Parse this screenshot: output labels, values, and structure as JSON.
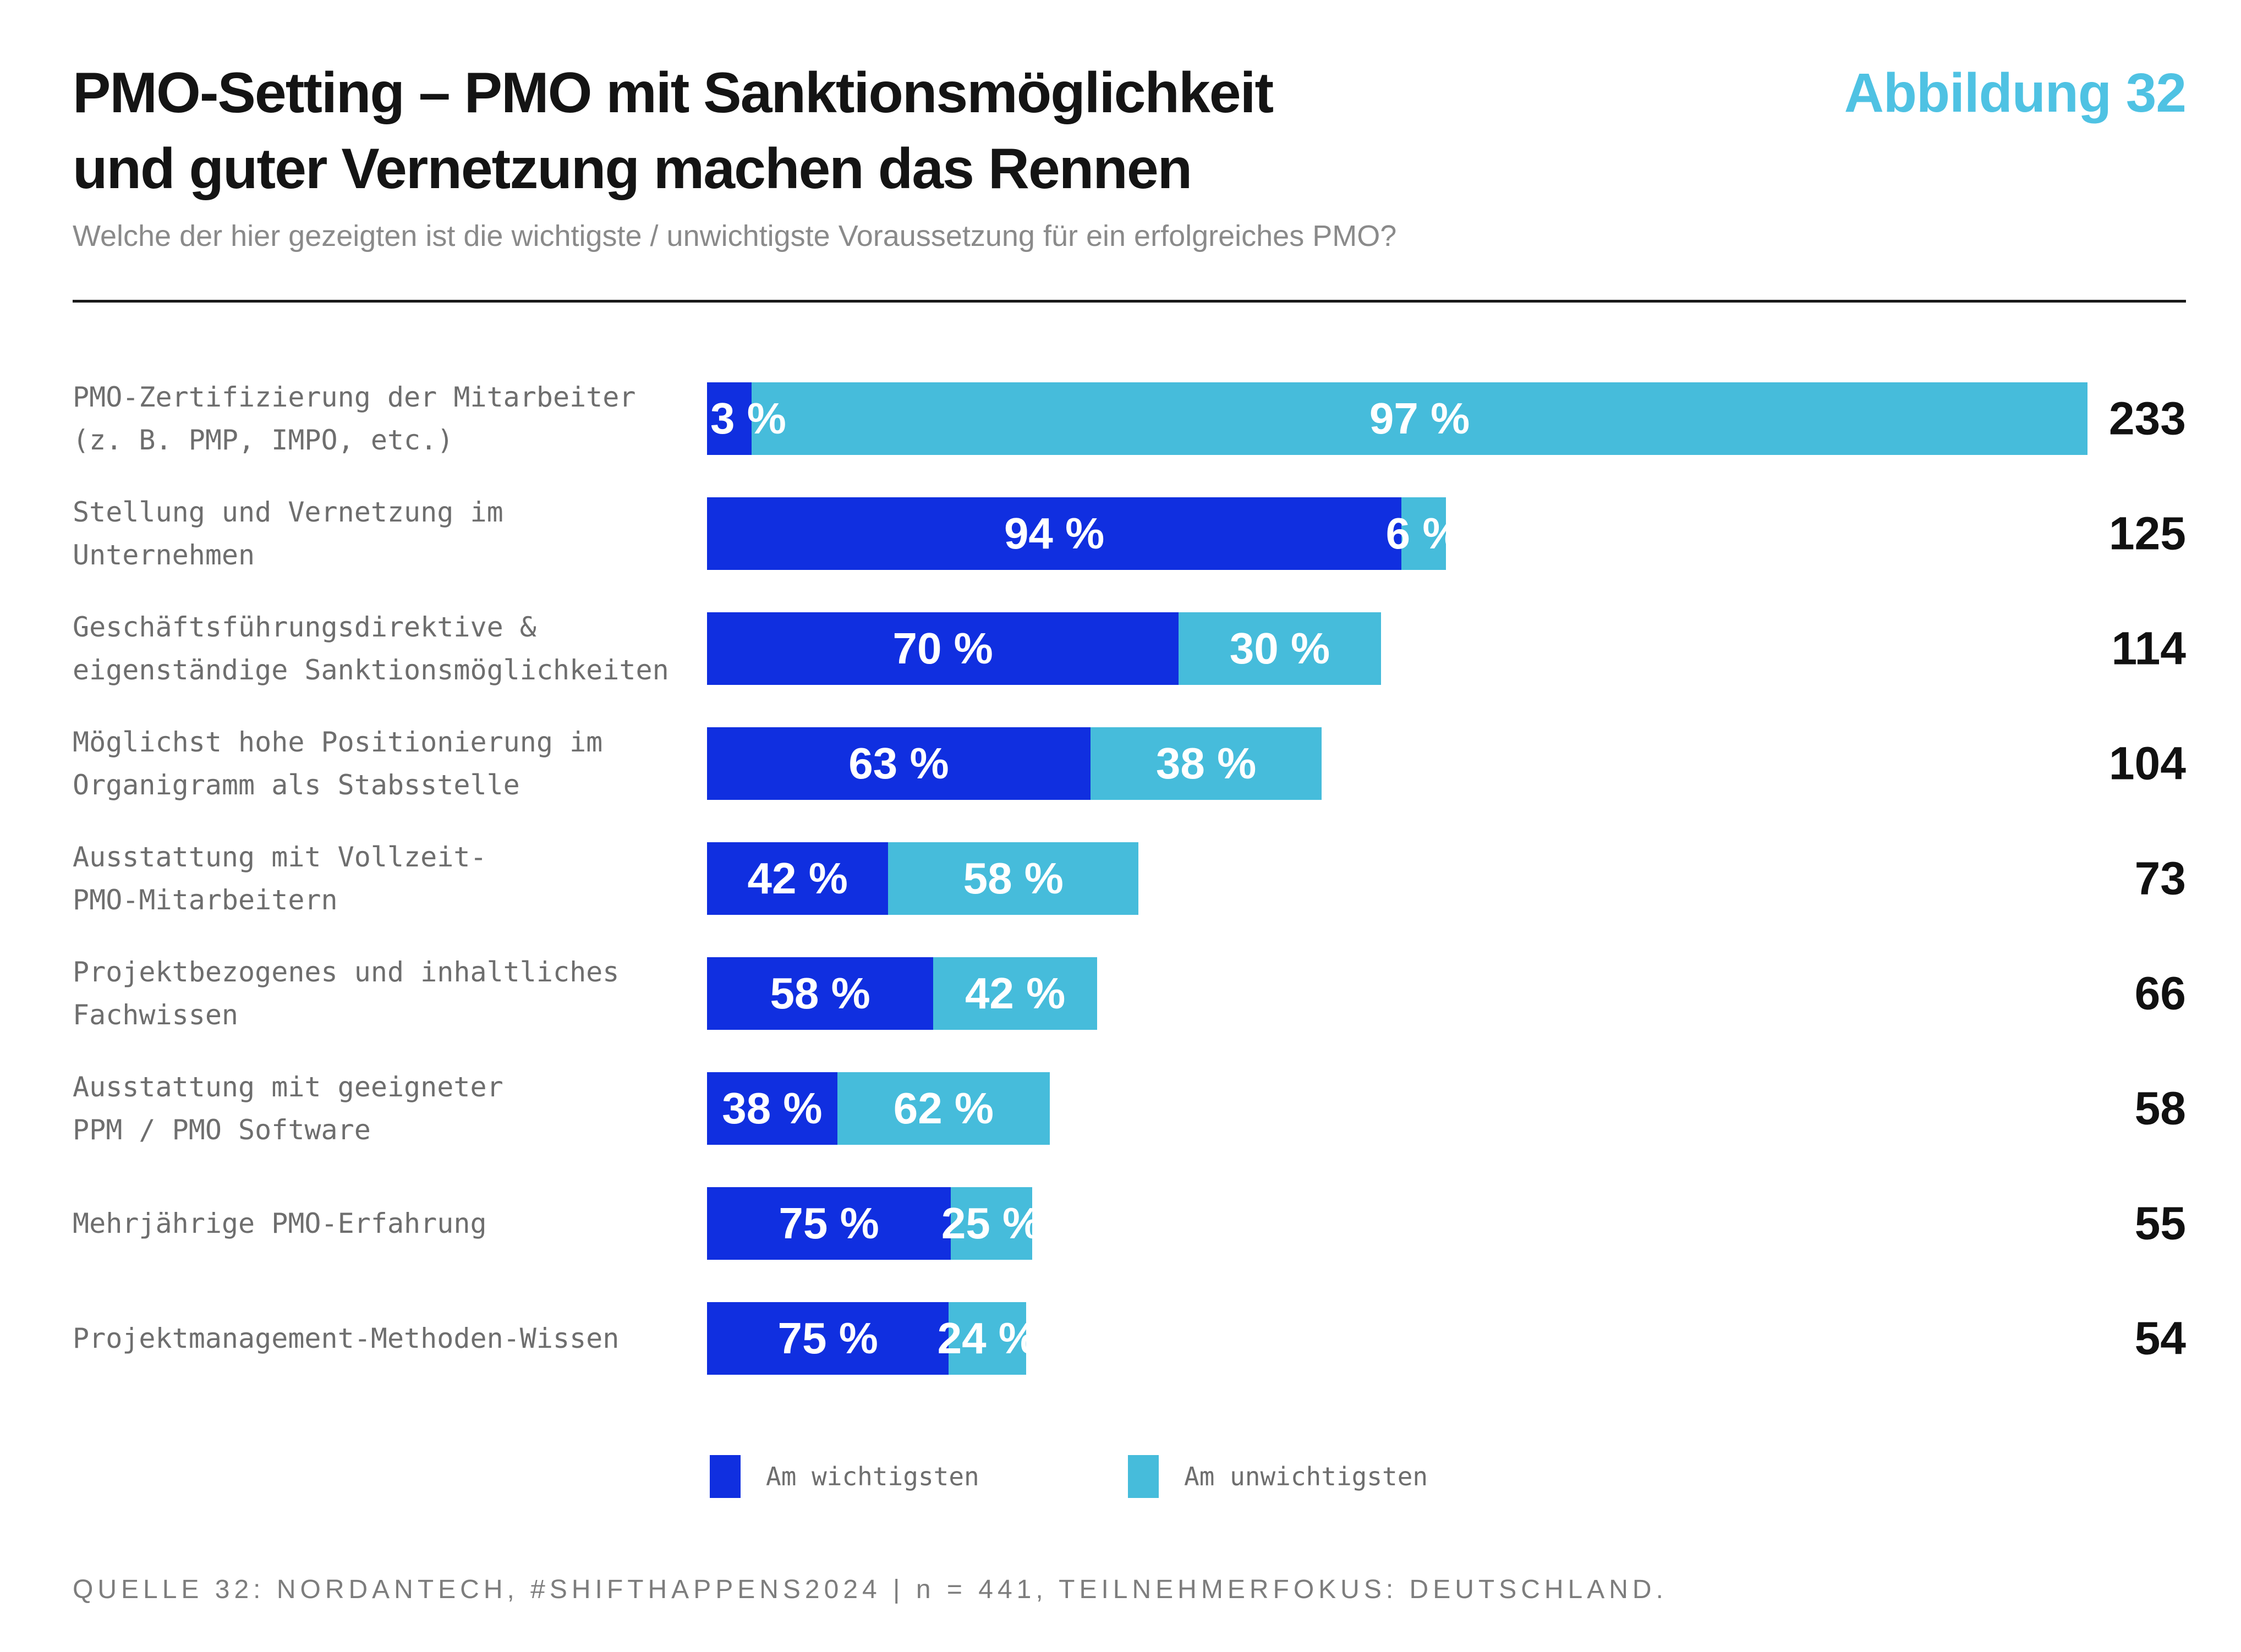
{
  "header": {
    "title_line1": "PMO-Setting – PMO mit Sanktionsmöglichkeit",
    "title_line2": "und guter Vernetzung machen das Rennen",
    "figure_label": "Abbildung 32",
    "subtitle": "Welche der hier gezeigten ist die wichtigste / unwichtigste Voraussetzung für ein erfolgreiches PMO?"
  },
  "colors": {
    "most_important": "#102FE0",
    "least_important": "#46BCDB",
    "figure_label_accent": "#4FC2E3",
    "title_text": "#141414",
    "category_label_gray": "#6e6e6e",
    "subtitle_gray": "#8a8a8a",
    "footer_gray": "#7d7d7d"
  },
  "chart_data": {
    "type": "bar",
    "orientation": "horizontal",
    "stacked": true,
    "bar_length_proportional_to": "totals",
    "legend_position": "bottom",
    "percent_suffix": " %",
    "categories": [
      [
        "PMO-Zertifizierung der Mitarbeiter",
        "(z. B. PMP, IMPO, etc.)"
      ],
      [
        "Stellung und Vernetzung im",
        "Unternehmen"
      ],
      [
        "Geschäftsführungsdirektive &",
        "eigenständige Sanktionsmöglichkeiten"
      ],
      [
        "Möglichst hohe Positionierung im",
        "Organigramm als Stabsstelle"
      ],
      [
        "Ausstattung mit Vollzeit-",
        "PMO-Mitarbeitern"
      ],
      [
        "Projektbezogenes und inhaltliches",
        "Fachwissen"
      ],
      [
        "Ausstattung mit geeigneter",
        "PPM / PMO Software"
      ],
      [
        "Mehrjährige PMO-Erfahrung"
      ],
      [
        "Projektmanagement-Methoden-Wissen"
      ]
    ],
    "series": [
      {
        "name": "Am wichtigsten",
        "color": "#102FE0",
        "values": [
          3,
          94,
          70,
          63,
          42,
          58,
          38,
          75,
          75
        ]
      },
      {
        "name": "Am unwichtigsten",
        "color": "#46BCDB",
        "values": [
          97,
          6,
          30,
          38,
          58,
          42,
          62,
          25,
          24
        ]
      }
    ],
    "totals": [
      233,
      125,
      114,
      104,
      73,
      66,
      58,
      55,
      54
    ]
  },
  "legend": {
    "items": [
      {
        "label": "Am wichtigsten",
        "color": "#102FE0"
      },
      {
        "label": "Am unwichtigsten",
        "color": "#46BCDB"
      }
    ]
  },
  "footer": {
    "source": "QUELLE 32: NORDANTECH, #SHIFTHAPPENS2024 | n = 441, TEILNEHMERFOKUS: DEUTSCHLAND."
  }
}
